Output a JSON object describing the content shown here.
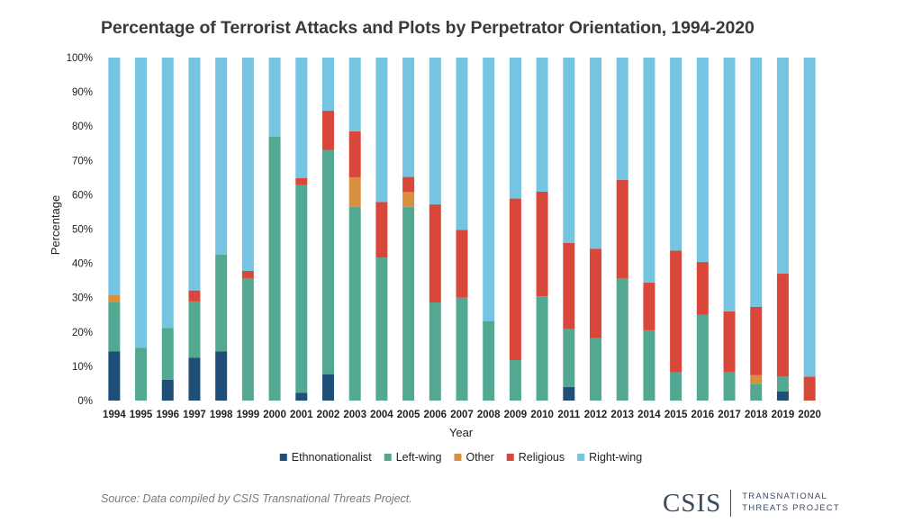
{
  "title": "Percentage of Terrorist Attacks and Plots by Perpetrator Orientation, 1994-2020",
  "source": "Source: Data compiled by CSIS Transnational Threats Project.",
  "logo": {
    "wordmark": "CSIS",
    "tagline_line1": "TRANSNATIONAL",
    "tagline_line2": "THREATS PROJECT",
    "color": "#3b4a5e"
  },
  "chart_data": {
    "type": "bar",
    "stacked": true,
    "title": "Percentage of Terrorist Attacks and Plots by Perpetrator Orientation, 1994-2020",
    "xlabel": "Year",
    "ylabel": "Percentage",
    "ylim": [
      0,
      100
    ],
    "yticks": [
      "0%",
      "10%",
      "20%",
      "30%",
      "40%",
      "50%",
      "60%",
      "70%",
      "80%",
      "90%",
      "100%"
    ],
    "grid": false,
    "legend_position": "bottom",
    "categories": [
      "1994",
      "1995",
      "1996",
      "1997",
      "1998",
      "1999",
      "2000",
      "2001",
      "2002",
      "2003",
      "2004",
      "2005",
      "2006",
      "2007",
      "2008",
      "2009",
      "2010",
      "2011",
      "2012",
      "2013",
      "2014",
      "2015",
      "2016",
      "2017",
      "2018",
      "2019",
      "2020"
    ],
    "series": [
      {
        "name": "Ethnonationalist",
        "color": "#1f4e79",
        "values": [
          14.3,
          0,
          6.1,
          12.5,
          14.3,
          0,
          0,
          2.3,
          7.7,
          0,
          0,
          0,
          0,
          0,
          0,
          0,
          0,
          4.0,
          0,
          0,
          0,
          0,
          0,
          0,
          0,
          2.7,
          0
        ]
      },
      {
        "name": "Left-wing",
        "color": "#52a890",
        "values": [
          14.3,
          15.4,
          15.1,
          16.4,
          28.3,
          35.7,
          76.9,
          60.5,
          65.4,
          56.5,
          41.7,
          56.5,
          28.6,
          30.0,
          23.1,
          11.8,
          30.4,
          16.8,
          18.2,
          35.7,
          20.5,
          8.2,
          25.0,
          8.3,
          4.9,
          4.3,
          0
        ]
      },
      {
        "name": "Other",
        "color": "#d89040",
        "values": [
          2.3,
          0,
          0,
          0,
          0,
          0,
          0,
          0,
          0,
          8.6,
          0,
          4.3,
          0,
          0,
          0,
          0,
          0,
          0,
          0,
          0,
          0,
          0,
          0,
          0,
          2.5,
          0,
          0
        ]
      },
      {
        "name": "Religious",
        "color": "#d9463a",
        "values": [
          0,
          0,
          0,
          3.2,
          0,
          2.1,
          0,
          2.1,
          11.4,
          13.4,
          16.2,
          4.4,
          28.6,
          19.8,
          0,
          47.1,
          30.5,
          25.2,
          26.1,
          28.6,
          13.9,
          35.5,
          15.4,
          17.7,
          19.9,
          30.0,
          7.0
        ]
      },
      {
        "name": "Right-wing",
        "color": "#74c4e2",
        "values": [
          69.1,
          84.6,
          78.8,
          67.9,
          57.4,
          62.2,
          23.1,
          35.1,
          15.5,
          21.5,
          42.1,
          34.8,
          42.8,
          50.2,
          76.9,
          41.1,
          39.1,
          54.0,
          55.7,
          35.7,
          65.6,
          56.3,
          59.6,
          74.0,
          72.7,
          63.0,
          93.0
        ]
      }
    ]
  }
}
